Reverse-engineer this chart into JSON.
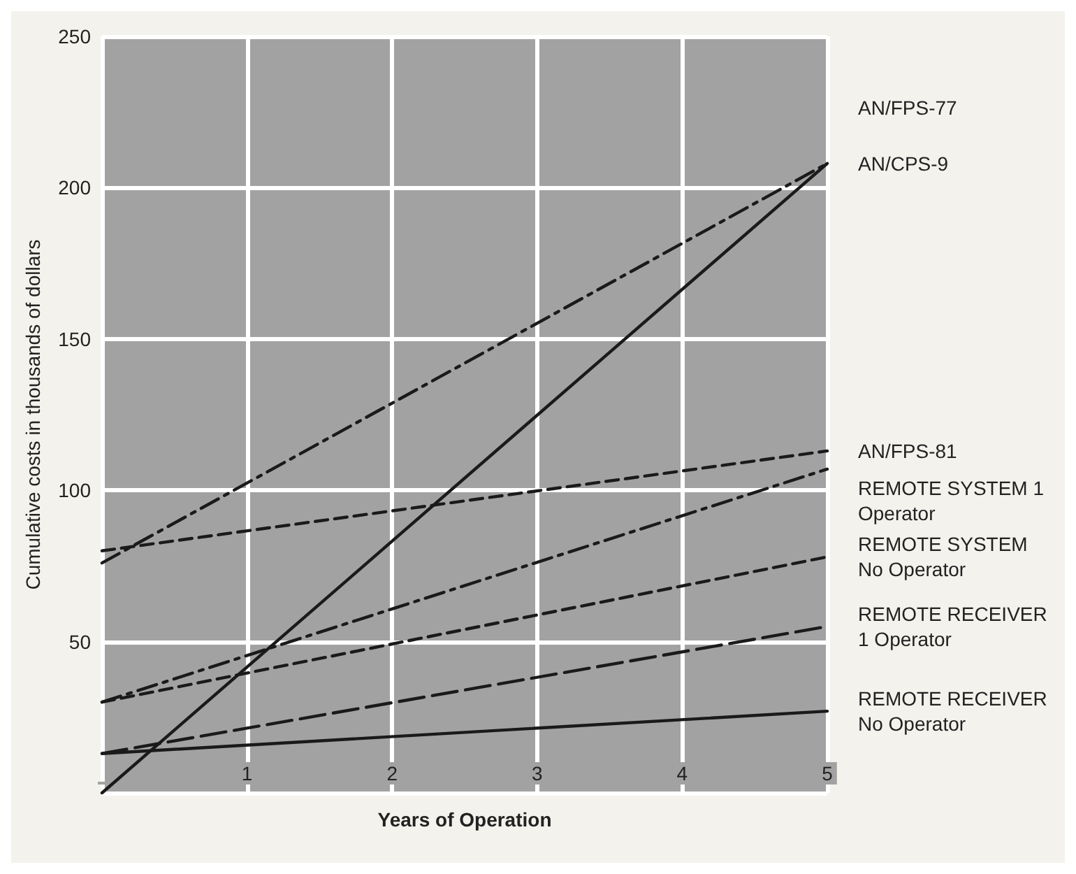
{
  "chart_data": {
    "type": "line",
    "xlabel": "Years of Operation",
    "ylabel": "Cumulative costs in thousands of dollars",
    "x": [
      0,
      5
    ],
    "xlim": [
      0,
      5
    ],
    "xticks": [
      {
        "value": 0,
        "label": null
      },
      1,
      2,
      3,
      4,
      5
    ],
    "ylim": [
      0,
      250
    ],
    "yticks": [
      {
        "value": 0,
        "label": null
      },
      50,
      100,
      150,
      200,
      250
    ],
    "grid": true,
    "marker": "none",
    "legend": false,
    "series": [
      {
        "name": "AN/FPS-77",
        "color": "#1a1a1a",
        "line_style": "solid",
        "values": [
          0,
          208
        ]
      },
      {
        "name": "AN/CPS-9",
        "color": "#1a1a1a",
        "line_style": "dashdot",
        "values": [
          76,
          208
        ]
      },
      {
        "name": "AN/FPS-81",
        "color": "#1a1a1a",
        "line_style": "dashed",
        "values": [
          80,
          113
        ]
      },
      {
        "name": "REMOTE SYSTEM 1 Operator",
        "color": "#1a1a1a",
        "line_style": "dashdot",
        "values": [
          30,
          107
        ]
      },
      {
        "name": "REMOTE SYSTEM No Operator",
        "color": "#1a1a1a",
        "line_style": "dashed",
        "values": [
          30,
          78
        ]
      },
      {
        "name": "REMOTE RECEIVER 1 Operator",
        "color": "#1a1a1a",
        "line_style": "longdash",
        "values": [
          13,
          55
        ]
      },
      {
        "name": "REMOTE RECEIVER No Operator",
        "color": "#1a1a1a",
        "line_style": "solid",
        "values": [
          13,
          27
        ]
      }
    ]
  }
}
